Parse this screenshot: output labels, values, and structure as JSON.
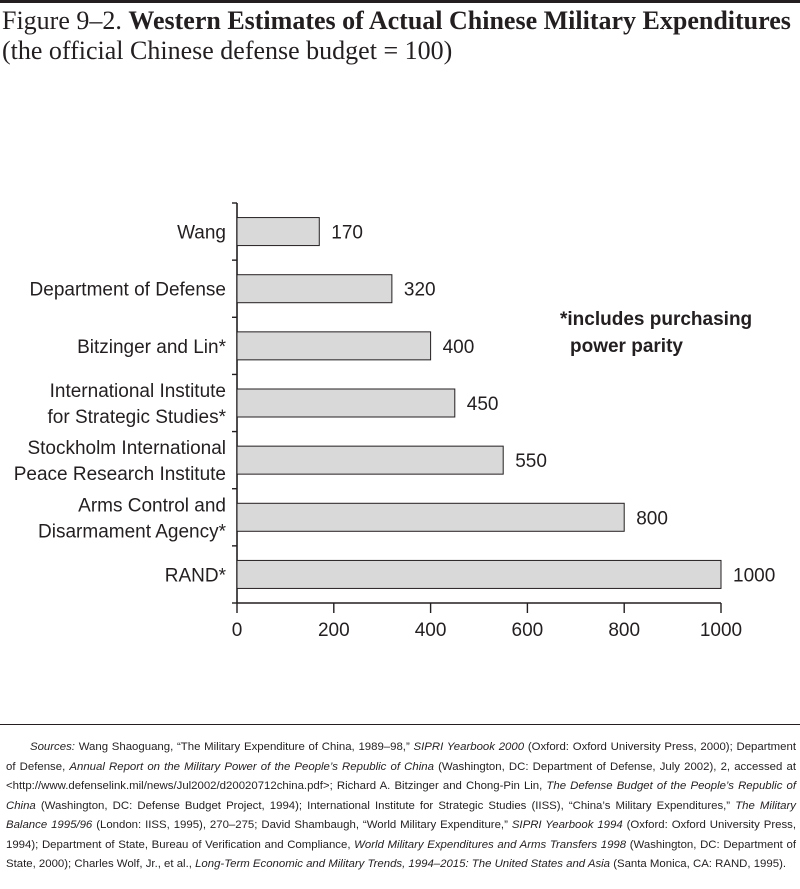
{
  "figure": {
    "label": "Figure 9–2.",
    "title": "Western Estimates of Actual Chinese Military Expenditures",
    "subtitle": "(the official Chinese defense budget = 100)"
  },
  "chart_data": {
    "type": "bar",
    "orientation": "horizontal",
    "categories": [
      [
        "Wang"
      ],
      [
        "Department of Defense"
      ],
      [
        "Bitzinger and Lin*"
      ],
      [
        "International Institute",
        "for Strategic Studies*"
      ],
      [
        "Stockholm International",
        "Peace Research Institute"
      ],
      [
        "Arms Control and",
        "Disarmament Agency*"
      ],
      [
        "RAND*"
      ]
    ],
    "values": [
      170,
      320,
      400,
      450,
      550,
      800,
      1000
    ],
    "data_labels": [
      "170",
      "320",
      "400",
      "450",
      "550",
      "800",
      "1000"
    ],
    "xlim": [
      0,
      1000
    ],
    "x_ticks": [
      0,
      200,
      400,
      600,
      800,
      1000
    ],
    "x_tick_labels": [
      "0",
      "200",
      "400",
      "600",
      "800",
      "1000"
    ],
    "xlabel": "",
    "ylabel": "",
    "grid": false,
    "bar_fill": "#d9d9d9",
    "bar_stroke": "#231f20"
  },
  "note": {
    "line1": "*includes purchasing",
    "line2": "power parity"
  },
  "sources": {
    "segments": [
      {
        "t": "Sources:",
        "i": true
      },
      {
        "t": " Wang Shaoguang, “The Military Expenditure of China, 1989–98,” ",
        "i": false
      },
      {
        "t": "SIPRI Yearbook 2000",
        "i": true
      },
      {
        "t": " (Oxford: Oxford University Press, 2000); Department of Defense, ",
        "i": false
      },
      {
        "t": "Annual Report on the Military Power of the People’s Republic of China",
        "i": true
      },
      {
        "t": " (Washington, DC: Department of Defense, July 2002), 2, accessed at <http://www.defenselink.mil/news/Jul2002/d20020712china.pdf>; Richard A. Bitzinger and Chong-Pin Lin, ",
        "i": false
      },
      {
        "t": "The Defense Budget of the People’s Republic of China",
        "i": true
      },
      {
        "t": " (Washington, DC: Defense Budget Project, 1994); International Institute for Strategic Studies (IISS), “China’s Military Expenditures,” ",
        "i": false
      },
      {
        "t": "The Military Balance 1995/96",
        "i": true
      },
      {
        "t": " (London: IISS, 1995), 270–275; David Shambaugh, “World Military Expenditure,” ",
        "i": false
      },
      {
        "t": "SIPRI Yearbook 1994",
        "i": true
      },
      {
        "t": " (Oxford: Oxford University Press, 1994); Department of State, Bureau of Verification and Compliance, ",
        "i": false
      },
      {
        "t": "World Military Expenditures and Arms Transfers 1998",
        "i": true
      },
      {
        "t": " (Washington, DC: Department of State, 2000); Charles Wolf, Jr., et al., ",
        "i": false
      },
      {
        "t": "Long-Term Economic and Military Trends, 1994–2015: The United States and Asia",
        "i": true
      },
      {
        "t": " (Santa Monica, CA: RAND, 1995).",
        "i": false
      }
    ]
  }
}
